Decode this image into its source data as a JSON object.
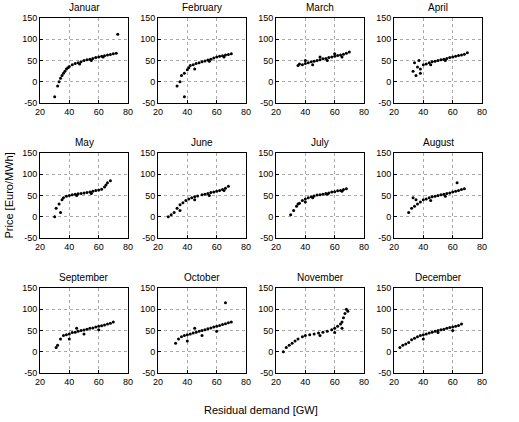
{
  "xlabel": "Residual demand [GW]",
  "ylabel": "Price [Euro/MWh]",
  "chart_data": [
    {
      "type": "scatter",
      "title": "Januar",
      "color": "#000000",
      "marker": "circle",
      "grid": true,
      "xlim": [
        20,
        80
      ],
      "ylim": [
        -50,
        150
      ],
      "xticks": [
        20,
        40,
        60,
        80
      ],
      "yticks": [
        -50,
        0,
        50,
        100,
        150
      ],
      "x": [
        30,
        32,
        33,
        34,
        35,
        36,
        37,
        38,
        39,
        40,
        42,
        44,
        46,
        48,
        50,
        52,
        54,
        56,
        58,
        60,
        62,
        64,
        66,
        68,
        70,
        72,
        73,
        47,
        55,
        63
      ],
      "values": [
        -35,
        -10,
        0,
        8,
        15,
        20,
        25,
        30,
        33,
        36,
        40,
        43,
        45,
        47,
        50,
        52,
        53,
        55,
        57,
        58,
        60,
        61,
        63,
        64,
        66,
        67,
        112,
        42,
        50,
        58
      ]
    },
    {
      "type": "scatter",
      "title": "February",
      "color": "#000000",
      "marker": "circle",
      "grid": true,
      "xlim": [
        20,
        80
      ],
      "ylim": [
        -50,
        150
      ],
      "xticks": [
        20,
        40,
        60,
        80
      ],
      "yticks": [
        -50,
        0,
        50,
        100,
        150
      ],
      "x": [
        33,
        35,
        36,
        38,
        38,
        40,
        41,
        42,
        44,
        46,
        48,
        50,
        52,
        54,
        56,
        58,
        60,
        62,
        64,
        66,
        68,
        70,
        45,
        55,
        65
      ],
      "values": [
        -10,
        0,
        15,
        20,
        -35,
        28,
        33,
        38,
        40,
        43,
        45,
        47,
        49,
        51,
        53,
        56,
        58,
        60,
        61,
        63,
        64,
        66,
        30,
        48,
        58
      ]
    },
    {
      "type": "scatter",
      "title": "March",
      "color": "#000000",
      "marker": "circle",
      "grid": true,
      "xlim": [
        20,
        80
      ],
      "ylim": [
        -50,
        150
      ],
      "xticks": [
        20,
        40,
        60,
        80
      ],
      "yticks": [
        -50,
        0,
        50,
        100,
        150
      ],
      "x": [
        35,
        36,
        38,
        40,
        42,
        44,
        46,
        48,
        50,
        52,
        54,
        56,
        58,
        60,
        62,
        64,
        66,
        68,
        70,
        45,
        55,
        65,
        40,
        50,
        60
      ],
      "values": [
        38,
        42,
        40,
        43,
        45,
        47,
        48,
        50,
        52,
        54,
        55,
        57,
        58,
        60,
        62,
        63,
        65,
        67,
        70,
        40,
        50,
        58,
        50,
        58,
        66
      ]
    },
    {
      "type": "scatter",
      "title": "April",
      "color": "#000000",
      "marker": "circle",
      "grid": true,
      "xlim": [
        20,
        80
      ],
      "ylim": [
        -50,
        150
      ],
      "xticks": [
        20,
        40,
        60,
        80
      ],
      "yticks": [
        -50,
        0,
        50,
        100,
        150
      ],
      "x": [
        33,
        34,
        35,
        36,
        37,
        38,
        40,
        42,
        44,
        46,
        48,
        50,
        52,
        54,
        56,
        58,
        60,
        62,
        64,
        66,
        68,
        70,
        38,
        45,
        55
      ],
      "values": [
        25,
        45,
        15,
        35,
        50,
        30,
        40,
        42,
        45,
        47,
        48,
        50,
        52,
        53,
        55,
        57,
        58,
        60,
        62,
        63,
        65,
        68,
        20,
        40,
        50
      ]
    },
    {
      "type": "scatter",
      "title": "May",
      "color": "#000000",
      "marker": "circle",
      "grid": true,
      "xlim": [
        20,
        80
      ],
      "ylim": [
        -50,
        150
      ],
      "xticks": [
        20,
        40,
        60,
        80
      ],
      "yticks": [
        -50,
        0,
        50,
        100,
        150
      ],
      "x": [
        30,
        31,
        33,
        35,
        36,
        38,
        40,
        42,
        44,
        46,
        48,
        50,
        52,
        54,
        56,
        58,
        60,
        62,
        64,
        66,
        68,
        34,
        45,
        55,
        65
      ],
      "values": [
        0,
        20,
        30,
        40,
        45,
        48,
        50,
        52,
        53,
        54,
        55,
        56,
        57,
        58,
        60,
        62,
        63,
        65,
        70,
        80,
        85,
        10,
        50,
        55,
        75
      ]
    },
    {
      "type": "scatter",
      "title": "June",
      "color": "#000000",
      "marker": "circle",
      "grid": true,
      "xlim": [
        20,
        80
      ],
      "ylim": [
        -50,
        150
      ],
      "xticks": [
        20,
        40,
        60,
        80
      ],
      "yticks": [
        -50,
        0,
        50,
        100,
        150
      ],
      "x": [
        27,
        29,
        31,
        33,
        35,
        37,
        39,
        41,
        43,
        45,
        47,
        50,
        52,
        54,
        56,
        58,
        60,
        62,
        64,
        66,
        68,
        35,
        45,
        55,
        65
      ],
      "values": [
        0,
        5,
        10,
        20,
        28,
        33,
        38,
        42,
        45,
        47,
        49,
        52,
        53,
        55,
        57,
        58,
        60,
        62,
        64,
        67,
        72,
        15,
        40,
        50,
        62
      ]
    },
    {
      "type": "scatter",
      "title": "July",
      "color": "#000000",
      "marker": "circle",
      "grid": true,
      "xlim": [
        20,
        80
      ],
      "ylim": [
        -50,
        150
      ],
      "xticks": [
        20,
        40,
        60,
        80
      ],
      "yticks": [
        -50,
        0,
        50,
        100,
        150
      ],
      "x": [
        30,
        32,
        34,
        36,
        38,
        40,
        42,
        44,
        46,
        48,
        50,
        52,
        54,
        56,
        58,
        60,
        62,
        64,
        66,
        68,
        35,
        45,
        55,
        65,
        40
      ],
      "values": [
        5,
        15,
        25,
        32,
        38,
        42,
        45,
        47,
        49,
        51,
        52,
        53,
        55,
        56,
        58,
        59,
        61,
        62,
        64,
        66,
        30,
        45,
        53,
        60,
        35
      ]
    },
    {
      "type": "scatter",
      "title": "August",
      "color": "#000000",
      "marker": "circle",
      "grid": true,
      "xlim": [
        20,
        80
      ],
      "ylim": [
        -50,
        150
      ],
      "xticks": [
        20,
        40,
        60,
        80
      ],
      "yticks": [
        -50,
        0,
        50,
        100,
        150
      ],
      "x": [
        30,
        32,
        34,
        36,
        38,
        40,
        42,
        44,
        46,
        48,
        50,
        52,
        54,
        56,
        58,
        60,
        62,
        64,
        66,
        68,
        35,
        45,
        55,
        63,
        33
      ],
      "values": [
        10,
        20,
        25,
        30,
        35,
        40,
        42,
        45,
        47,
        48,
        50,
        52,
        53,
        55,
        56,
        58,
        60,
        62,
        64,
        66,
        40,
        38,
        48,
        80,
        45
      ]
    },
    {
      "type": "scatter",
      "title": "September",
      "color": "#000000",
      "marker": "circle",
      "grid": true,
      "xlim": [
        20,
        80
      ],
      "ylim": [
        -50,
        150
      ],
      "xticks": [
        20,
        40,
        60,
        80
      ],
      "yticks": [
        -50,
        0,
        50,
        100,
        150
      ],
      "x": [
        31,
        32,
        34,
        36,
        38,
        40,
        42,
        44,
        46,
        48,
        50,
        52,
        54,
        56,
        58,
        60,
        62,
        64,
        66,
        68,
        70,
        40,
        50,
        60,
        45
      ],
      "values": [
        10,
        15,
        30,
        38,
        40,
        42,
        45,
        46,
        48,
        50,
        51,
        53,
        55,
        56,
        58,
        60,
        61,
        63,
        65,
        67,
        70,
        30,
        42,
        52,
        55
      ]
    },
    {
      "type": "scatter",
      "title": "October",
      "color": "#000000",
      "marker": "circle",
      "grid": true,
      "xlim": [
        20,
        80
      ],
      "ylim": [
        -50,
        150
      ],
      "xticks": [
        20,
        40,
        60,
        80
      ],
      "yticks": [
        -50,
        0,
        50,
        100,
        150
      ],
      "x": [
        32,
        34,
        36,
        38,
        40,
        42,
        44,
        46,
        48,
        50,
        52,
        54,
        56,
        58,
        60,
        62,
        64,
        66,
        68,
        70,
        66,
        40,
        50,
        60,
        45
      ],
      "values": [
        20,
        30,
        35,
        38,
        40,
        42,
        44,
        46,
        48,
        50,
        52,
        54,
        56,
        58,
        60,
        62,
        64,
        66,
        68,
        70,
        115,
        25,
        38,
        48,
        55
      ]
    },
    {
      "type": "scatter",
      "title": "November",
      "color": "#000000",
      "marker": "circle",
      "grid": true,
      "xlim": [
        20,
        80
      ],
      "ylim": [
        -50,
        150
      ],
      "xticks": [
        20,
        40,
        60,
        80
      ],
      "yticks": [
        -50,
        0,
        50,
        100,
        150
      ],
      "x": [
        25,
        27,
        29,
        31,
        33,
        35,
        38,
        40,
        43,
        46,
        49,
        52,
        55,
        58,
        60,
        62,
        64,
        65,
        66,
        67,
        68,
        69,
        60,
        65,
        50
      ],
      "values": [
        0,
        10,
        15,
        20,
        25,
        30,
        35,
        38,
        40,
        42,
        44,
        46,
        48,
        52,
        55,
        60,
        65,
        70,
        80,
        90,
        100,
        95,
        45,
        55,
        38
      ]
    },
    {
      "type": "scatter",
      "title": "December",
      "color": "#000000",
      "marker": "circle",
      "grid": true,
      "xlim": [
        20,
        80
      ],
      "ylim": [
        -50,
        150
      ],
      "xticks": [
        20,
        40,
        60,
        80
      ],
      "yticks": [
        -50,
        0,
        50,
        100,
        150
      ],
      "x": [
        24,
        26,
        28,
        30,
        32,
        34,
        36,
        38,
        40,
        42,
        44,
        46,
        48,
        50,
        52,
        54,
        56,
        58,
        60,
        62,
        64,
        66,
        40,
        50,
        60
      ],
      "values": [
        10,
        15,
        18,
        22,
        28,
        32,
        35,
        38,
        40,
        42,
        44,
        46,
        48,
        50,
        52,
        53,
        55,
        57,
        58,
        60,
        62,
        65,
        30,
        45,
        50
      ]
    }
  ]
}
